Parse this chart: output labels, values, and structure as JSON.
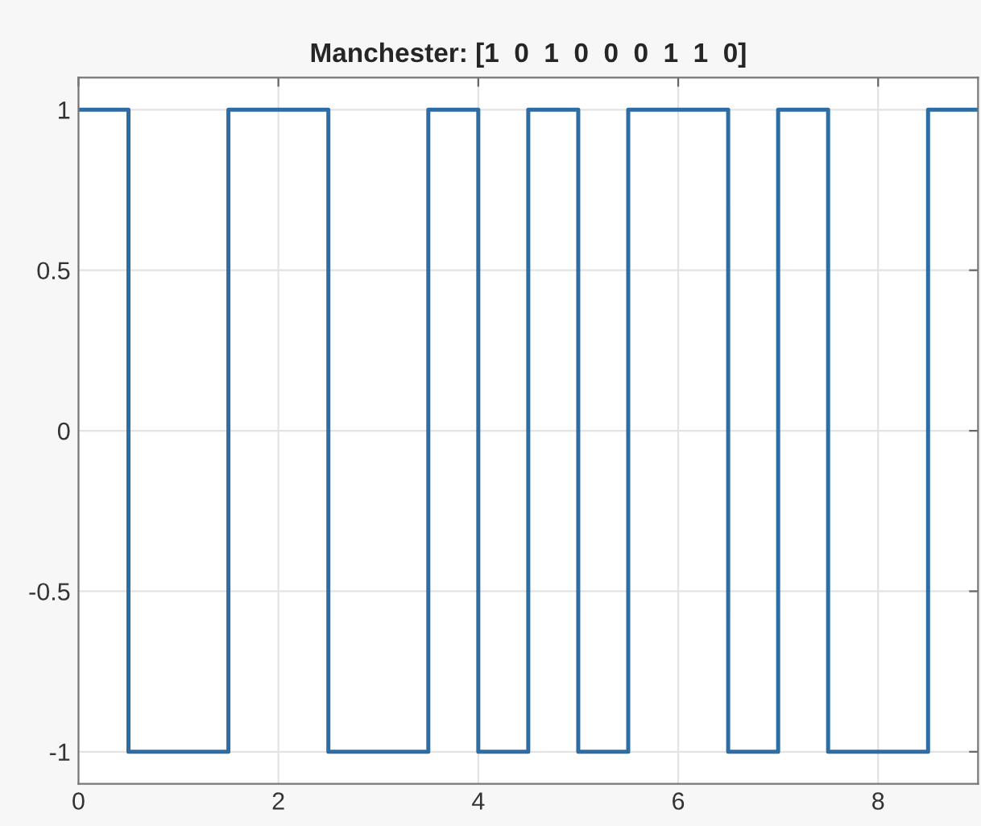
{
  "chart_data": {
    "type": "step",
    "title": "Manchester: [1  0  1  0  0  0  1  1  0]",
    "x": [
      0,
      0.5,
      1.5,
      2.5,
      3.5,
      4,
      4.5,
      5,
      5.5,
      6.5,
      7,
      7.5,
      8.5,
      9
    ],
    "series": [
      {
        "color": "#2e6da4",
        "values": [
          1,
          -1,
          1,
          -1,
          1,
          -1,
          1,
          -1,
          1,
          -1,
          1,
          -1,
          1,
          1
        ]
      }
    ],
    "xlim": [
      0,
      9
    ],
    "xticks": [
      0,
      2,
      4,
      6,
      8
    ],
    "ylim": [
      -1.1,
      1.1
    ],
    "yticks": [
      -1,
      -0.5,
      0,
      0.5,
      1
    ],
    "grid": true
  }
}
